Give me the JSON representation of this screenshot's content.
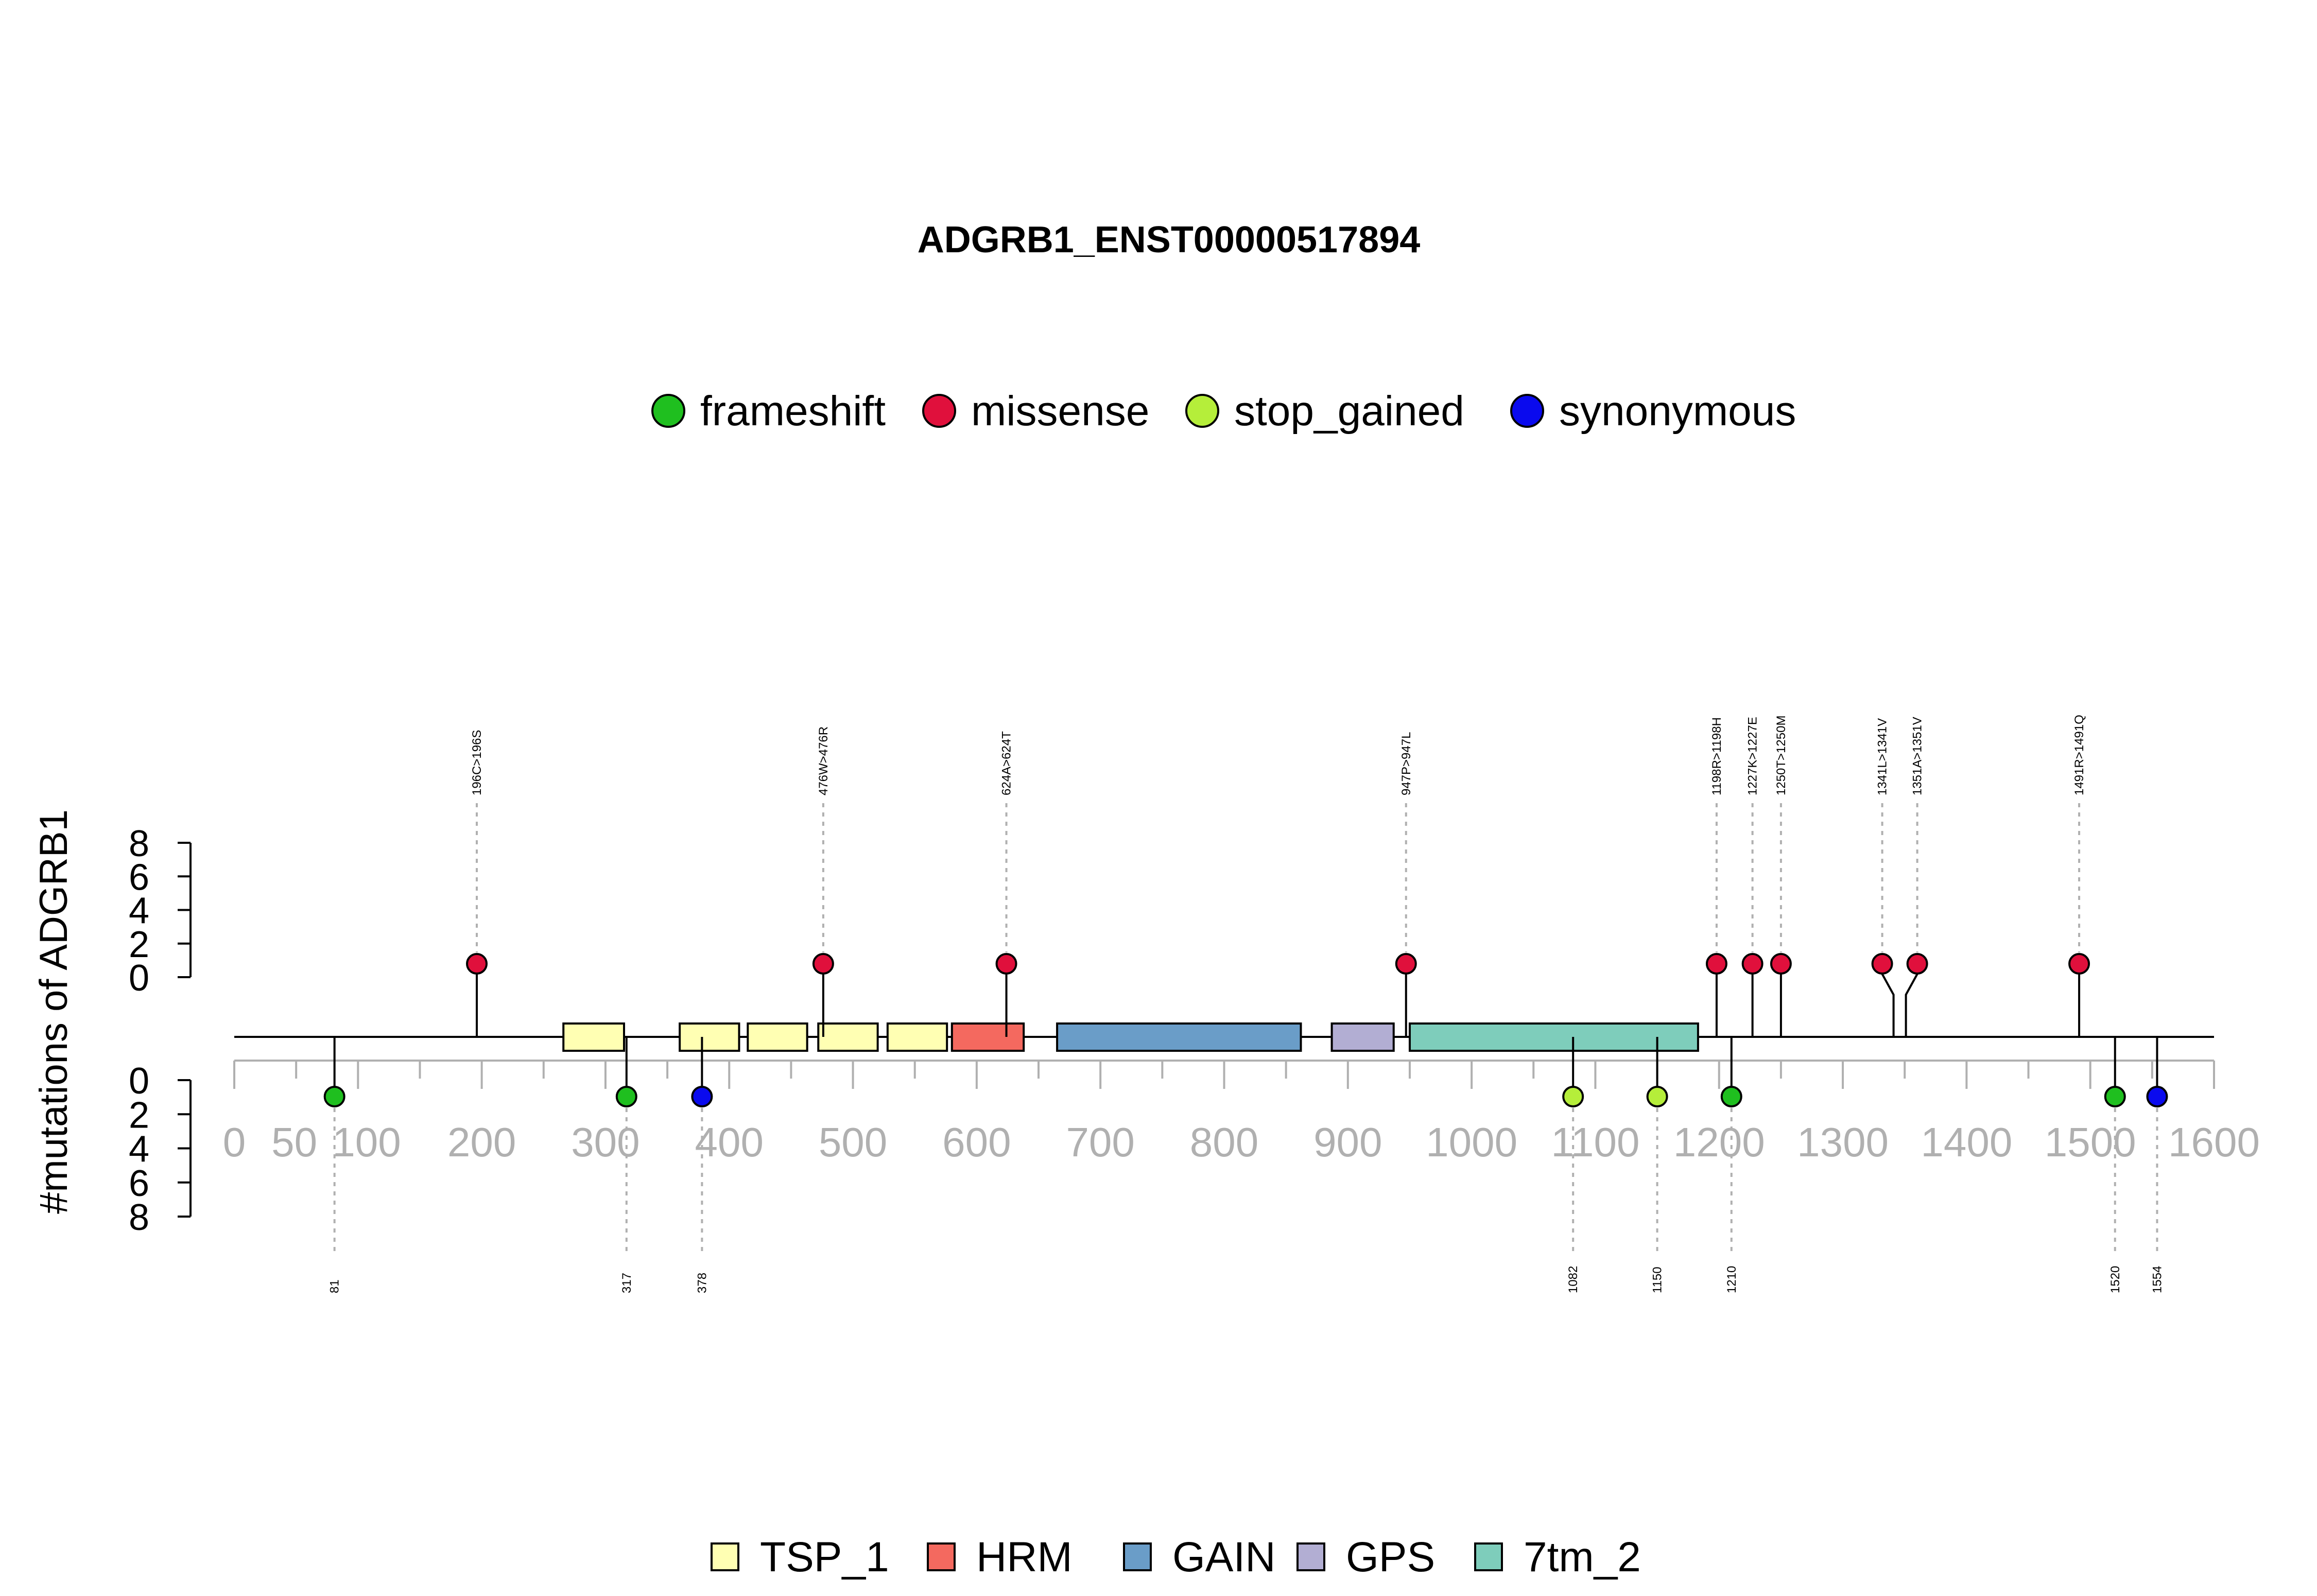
{
  "chart_data": {
    "type": "lollipop",
    "title": "ADGRB1_ENST00000517894",
    "ylabel": "#mutations of ADGRB1",
    "xlim": [
      0,
      1600
    ],
    "x_ticks": [
      0,
      50,
      100,
      200,
      300,
      400,
      500,
      600,
      700,
      800,
      900,
      1000,
      1100,
      1200,
      1300,
      1400,
      1500,
      1600
    ],
    "y_ticks": [
      0,
      2,
      4,
      6,
      8
    ],
    "ylim": [
      0,
      8
    ],
    "mutation_types": [
      {
        "name": "frameshift",
        "color": "#1fbf1f"
      },
      {
        "name": "missense",
        "color": "#e0103c"
      },
      {
        "name": "stop_gained",
        "color": "#b5ee3a"
      },
      {
        "name": "synonymous",
        "color": "#0a0aee"
      }
    ],
    "domain_types": [
      {
        "name": "TSP_1",
        "color": "#ffffb3"
      },
      {
        "name": "HRM",
        "color": "#f4695f"
      },
      {
        "name": "GAIN",
        "color": "#6a9dc8"
      },
      {
        "name": "GPS",
        "color": "#b2aed3"
      },
      {
        "name": "7tm_2",
        "color": "#7ecdbb"
      }
    ],
    "domains": [
      {
        "name": "TSP_1",
        "start": 266,
        "end": 315
      },
      {
        "name": "TSP_1",
        "start": 360,
        "end": 408
      },
      {
        "name": "TSP_1",
        "start": 415,
        "end": 463
      },
      {
        "name": "TSP_1",
        "start": 472,
        "end": 520
      },
      {
        "name": "TSP_1",
        "start": 528,
        "end": 576
      },
      {
        "name": "HRM",
        "start": 580,
        "end": 638
      },
      {
        "name": "GAIN",
        "start": 665,
        "end": 862
      },
      {
        "name": "GPS",
        "start": 887,
        "end": 937
      },
      {
        "name": "7tm_2",
        "start": 950,
        "end": 1183
      }
    ],
    "mutations_above": [
      {
        "label": "196C>196S",
        "pos": 196,
        "type": "missense",
        "count": 1
      },
      {
        "label": "476W>476R",
        "pos": 476,
        "type": "missense",
        "count": 1
      },
      {
        "label": "624A>624T",
        "pos": 624,
        "type": "missense",
        "count": 1
      },
      {
        "label": "947P>947L",
        "pos": 947,
        "type": "missense",
        "count": 1
      },
      {
        "label": "1198R>1198H",
        "pos": 1198,
        "type": "missense",
        "count": 1
      },
      {
        "label": "1227K>1227E",
        "pos": 1227,
        "type": "missense",
        "count": 1
      },
      {
        "label": "1250T>1250M",
        "pos": 1250,
        "type": "missense",
        "count": 1
      },
      {
        "label": "1341L>1341V",
        "pos": 1341,
        "type": "missense",
        "count": 1
      },
      {
        "label": "1351A>1351V",
        "pos": 1351,
        "type": "missense",
        "count": 1
      },
      {
        "label": "1491R>1491Q",
        "pos": 1491,
        "type": "missense",
        "count": 1
      }
    ],
    "mutations_below": [
      {
        "label": "81",
        "pos": 81,
        "type": "frameshift",
        "count": 1
      },
      {
        "label": "317",
        "pos": 317,
        "type": "frameshift",
        "count": 1
      },
      {
        "label": "378",
        "pos": 378,
        "type": "synonymous",
        "count": 1
      },
      {
        "label": "1082",
        "pos": 1082,
        "type": "stop_gained",
        "count": 1
      },
      {
        "label": "1150",
        "pos": 1150,
        "type": "stop_gained",
        "count": 1
      },
      {
        "label": "1210",
        "pos": 1210,
        "type": "frameshift",
        "count": 1
      },
      {
        "label": "1520",
        "pos": 1520,
        "type": "frameshift",
        "count": 1
      },
      {
        "label": "1554",
        "pos": 1554,
        "type": "synonymous",
        "count": 1
      }
    ]
  }
}
